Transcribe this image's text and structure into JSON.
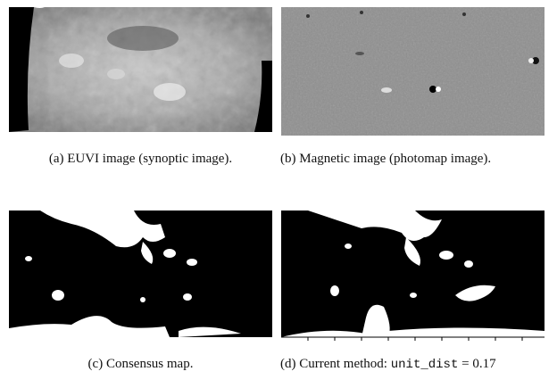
{
  "figure": {
    "panels": [
      {
        "caption": "(a) EUVI image (synoptic image)."
      },
      {
        "caption": "(b) Magnetic image (photomap image)."
      },
      {
        "caption": "(c) Consensus map."
      },
      {
        "caption_prefix": "(d) Current method:",
        "code": "unit_dist",
        "caption_suffix": "= 0.17"
      }
    ]
  }
}
